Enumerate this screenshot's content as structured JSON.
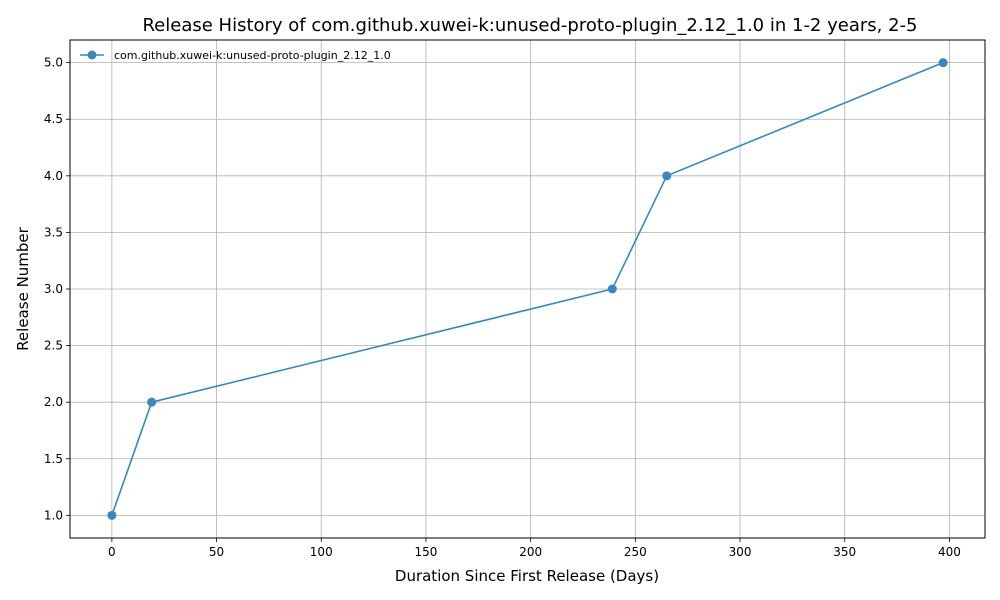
{
  "chart_data": {
    "type": "line",
    "title": "Release History of com.github.xuwei-k:unused-proto-plugin_2.12_1.0 in 1-2 years, 2-5",
    "xlabel": "Duration Since First Release (Days)",
    "ylabel": "Release Number",
    "xlim": [
      -20,
      417
    ],
    "ylim": [
      0.8,
      5.2
    ],
    "xticks": [
      0,
      50,
      100,
      150,
      200,
      250,
      300,
      350,
      400
    ],
    "xtick_labels": [
      "0",
      "50",
      "100",
      "150",
      "200",
      "250",
      "300",
      "350",
      "400"
    ],
    "yticks": [
      1.0,
      1.5,
      2.0,
      2.5,
      3.0,
      3.5,
      4.0,
      4.5,
      5.0
    ],
    "ytick_labels": [
      "1.0",
      "1.5",
      "2.0",
      "2.5",
      "3.0",
      "3.5",
      "4.0",
      "4.5",
      "5.0"
    ],
    "grid": true,
    "legend_position": "top-left",
    "series": [
      {
        "name": "com.github.xuwei-k:unused-proto-plugin_2.12_1.0",
        "color": "#3a87bd",
        "x": [
          0,
          19,
          239,
          265,
          397
        ],
        "y": [
          1,
          2,
          3,
          4,
          5
        ]
      }
    ]
  }
}
